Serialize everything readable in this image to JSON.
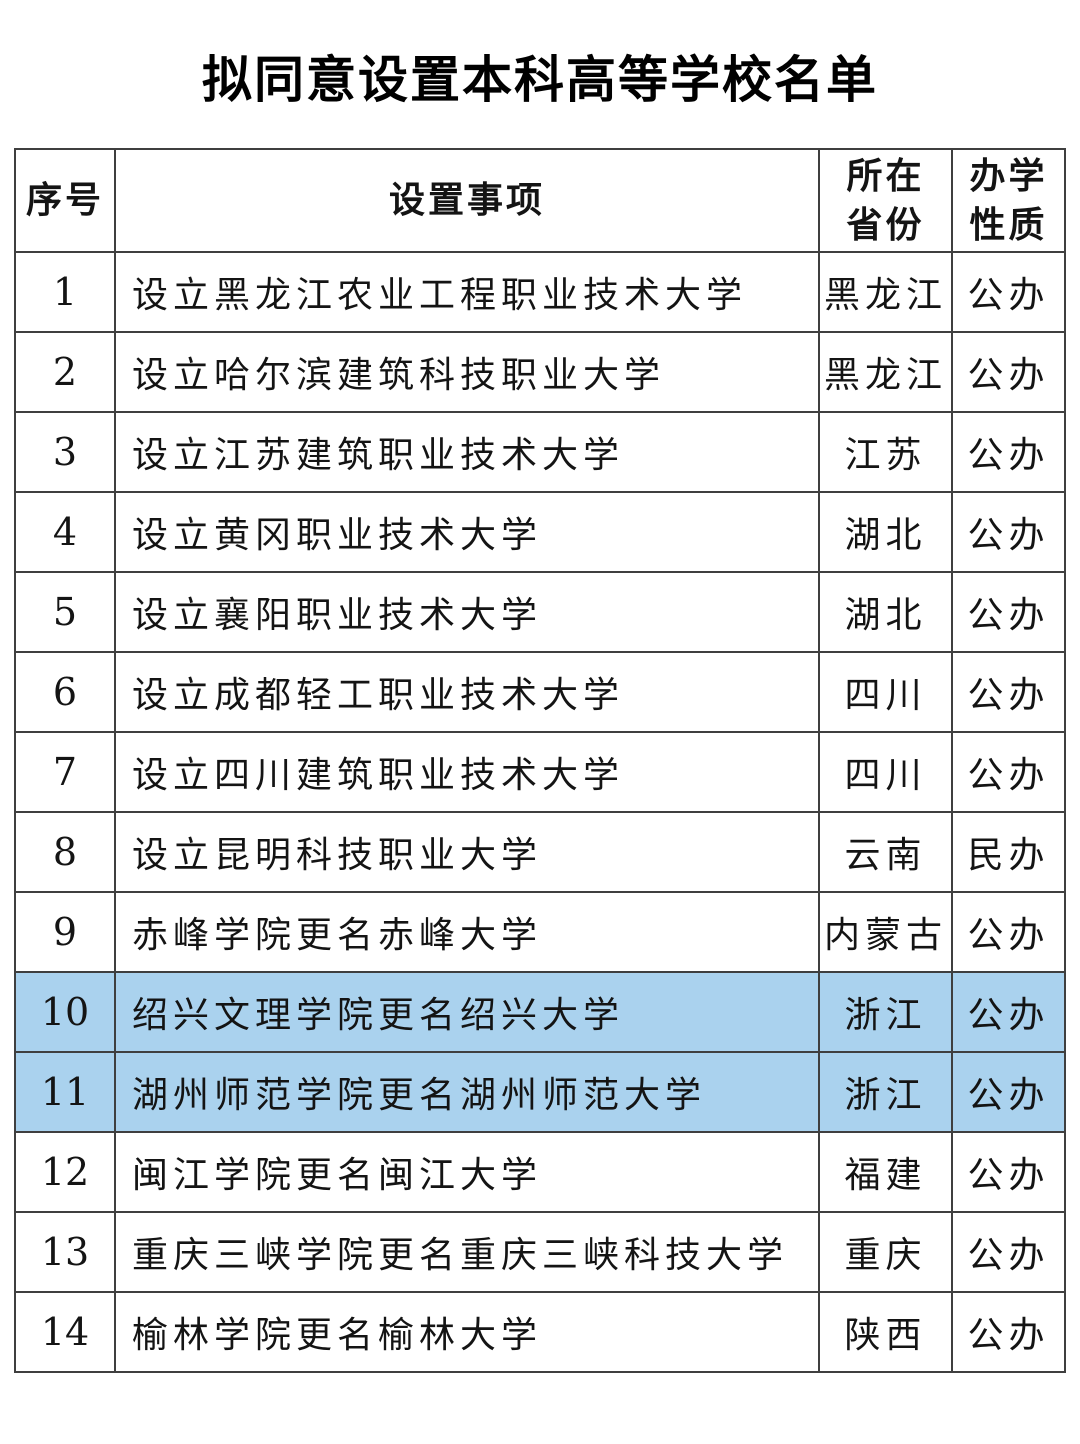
{
  "page": {
    "title": "拟同意设置本科高等学校名单"
  },
  "table": {
    "headers": [
      "序号",
      "设置事项",
      "所在\n省份",
      "办学\n性质"
    ],
    "highlight_color": "#aad2ee",
    "rows": [
      {
        "no": "1",
        "item": "设立黑龙江农业工程职业技术大学",
        "province": "黑龙江",
        "type": "公办",
        "highlight": false
      },
      {
        "no": "2",
        "item": "设立哈尔滨建筑科技职业大学",
        "province": "黑龙江",
        "type": "公办",
        "highlight": false
      },
      {
        "no": "3",
        "item": "设立江苏建筑职业技术大学",
        "province": "江苏",
        "type": "公办",
        "highlight": false
      },
      {
        "no": "4",
        "item": "设立黄冈职业技术大学",
        "province": "湖北",
        "type": "公办",
        "highlight": false
      },
      {
        "no": "5",
        "item": "设立襄阳职业技术大学",
        "province": "湖北",
        "type": "公办",
        "highlight": false
      },
      {
        "no": "6",
        "item": "设立成都轻工职业技术大学",
        "province": "四川",
        "type": "公办",
        "highlight": false
      },
      {
        "no": "7",
        "item": "设立四川建筑职业技术大学",
        "province": "四川",
        "type": "公办",
        "highlight": false
      },
      {
        "no": "8",
        "item": "设立昆明科技职业大学",
        "province": "云南",
        "type": "民办",
        "highlight": false
      },
      {
        "no": "9",
        "item": "赤峰学院更名赤峰大学",
        "province": "内蒙古",
        "type": "公办",
        "highlight": false
      },
      {
        "no": "10",
        "item": "绍兴文理学院更名绍兴大学",
        "province": "浙江",
        "type": "公办",
        "highlight": true
      },
      {
        "no": "11",
        "item": "湖州师范学院更名湖州师范大学",
        "province": "浙江",
        "type": "公办",
        "highlight": true
      },
      {
        "no": "12",
        "item": "闽江学院更名闽江大学",
        "province": "福建",
        "type": "公办",
        "highlight": false
      },
      {
        "no": "13",
        "item": "重庆三峡学院更名重庆三峡科技大学",
        "province": "重庆",
        "type": "公办",
        "highlight": false
      },
      {
        "no": "14",
        "item": "榆林学院更名榆林大学",
        "province": "陕西",
        "type": "公办",
        "highlight": false
      }
    ]
  }
}
